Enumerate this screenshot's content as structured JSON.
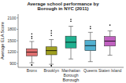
{
  "chart_data": {
    "type": "box",
    "title": "Average school performance by\nBorough in NYC (2011)",
    "xlabel": "Borough",
    "ylabel": "Average ELA Score",
    "categories": [
      "Bronx",
      "Brooklyn",
      "Manhattan\nBorough",
      "Queens",
      "Staten Island"
    ],
    "colors": [
      "#e07070",
      "#a0a020",
      "#20b090",
      "#50b0d0",
      "#c060c0"
    ],
    "boxes": [
      {
        "q1": 1100,
        "median": 1200,
        "q3": 1290,
        "whislo": 920,
        "whishi": 1480,
        "fliers_low": [
          855,
          870
        ],
        "fliers_high": [
          1560,
          1610,
          1680
        ]
      },
      {
        "q1": 1130,
        "median": 1240,
        "q3": 1340,
        "whislo": 880,
        "whishi": 1530,
        "fliers_low": [
          835,
          850
        ],
        "fliers_high": [
          1640,
          1700,
          1760
        ]
      },
      {
        "q1": 1310,
        "median": 1460,
        "q3": 1620,
        "whislo": 1020,
        "whishi": 1880,
        "fliers_low": [],
        "fliers_high": [
          2010,
          2060
        ]
      },
      {
        "q1": 1240,
        "median": 1370,
        "q3": 1510,
        "whislo": 950,
        "whishi": 1720,
        "fliers_low": [],
        "fliers_high": [
          1820,
          1870
        ]
      },
      {
        "q1": 1360,
        "median": 1490,
        "q3": 1610,
        "whislo": 1120,
        "whishi": 1760,
        "fliers_low": [],
        "fliers_high": [
          1910
        ]
      }
    ],
    "ylim": [
      800,
      2200
    ],
    "yticks": [
      900,
      1200,
      1500,
      1800,
      2100
    ]
  }
}
